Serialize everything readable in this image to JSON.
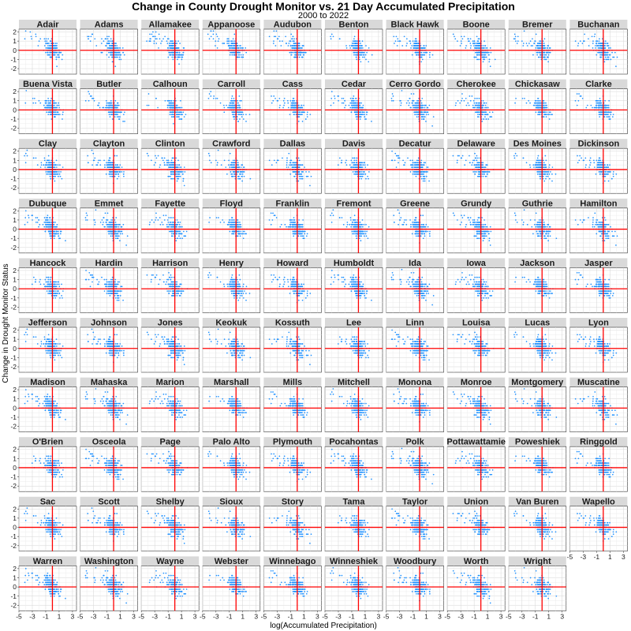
{
  "chart_data": {
    "type": "scatter",
    "title": "Change in County Drought Monitor vs. 21 Day Accumulated Precipitation",
    "subtitle": "2000 to 2022",
    "xlabel": "log(Accumulated Precipitation)",
    "ylabel": "Change in Drought Monitor Status",
    "xlim": [
      -5,
      3.6
    ],
    "ylim": [
      -2.6,
      2.3
    ],
    "x_ticks": [
      -5,
      -3,
      -1,
      1,
      3
    ],
    "y_ticks": [
      -2,
      -1,
      0,
      1,
      2
    ],
    "grid": true,
    "reference_lines": {
      "x": 0,
      "y": 0,
      "color": "#ff0000"
    },
    "point_color": "#1e90ff",
    "facet_columns": 10,
    "facets": [
      "Adair",
      "Adams",
      "Allamakee",
      "Appanoose",
      "Audubon",
      "Benton",
      "Black Hawk",
      "Boone",
      "Bremer",
      "Buchanan",
      "Buena Vista",
      "Butler",
      "Calhoun",
      "Carroll",
      "Cass",
      "Cedar",
      "Cerro Gordo",
      "Cherokee",
      "Chickasaw",
      "Clarke",
      "Clay",
      "Clayton",
      "Clinton",
      "Crawford",
      "Dallas",
      "Davis",
      "Decatur",
      "Delaware",
      "Des Moines",
      "Dickinson",
      "Dubuque",
      "Emmet",
      "Fayette",
      "Floyd",
      "Franklin",
      "Fremont",
      "Greene",
      "Grundy",
      "Guthrie",
      "Hamilton",
      "Hancock",
      "Hardin",
      "Harrison",
      "Henry",
      "Howard",
      "Humboldt",
      "Ida",
      "Iowa",
      "Jackson",
      "Jasper",
      "Jefferson",
      "Johnson",
      "Jones",
      "Keokuk",
      "Kossuth",
      "Lee",
      "Linn",
      "Louisa",
      "Lucas",
      "Lyon",
      "Madison",
      "Mahaska",
      "Marion",
      "Marshall",
      "Mills",
      "Mitchell",
      "Monona",
      "Monroe",
      "Montgomery",
      "Muscatine",
      "O'Brien",
      "Osceola",
      "Page",
      "Palo Alto",
      "Plymouth",
      "Pocahontas",
      "Polk",
      "Pottawattamie",
      "Poweshiek",
      "Ringgold",
      "Sac",
      "Scott",
      "Shelby",
      "Sioux",
      "Story",
      "Tama",
      "Taylor",
      "Union",
      "Van Buren",
      "Wapello",
      "Warren",
      "Washington",
      "Wayne",
      "Webster",
      "Winnebago",
      "Winneshiek",
      "Woodbury",
      "Worth",
      "Wright"
    ]
  }
}
